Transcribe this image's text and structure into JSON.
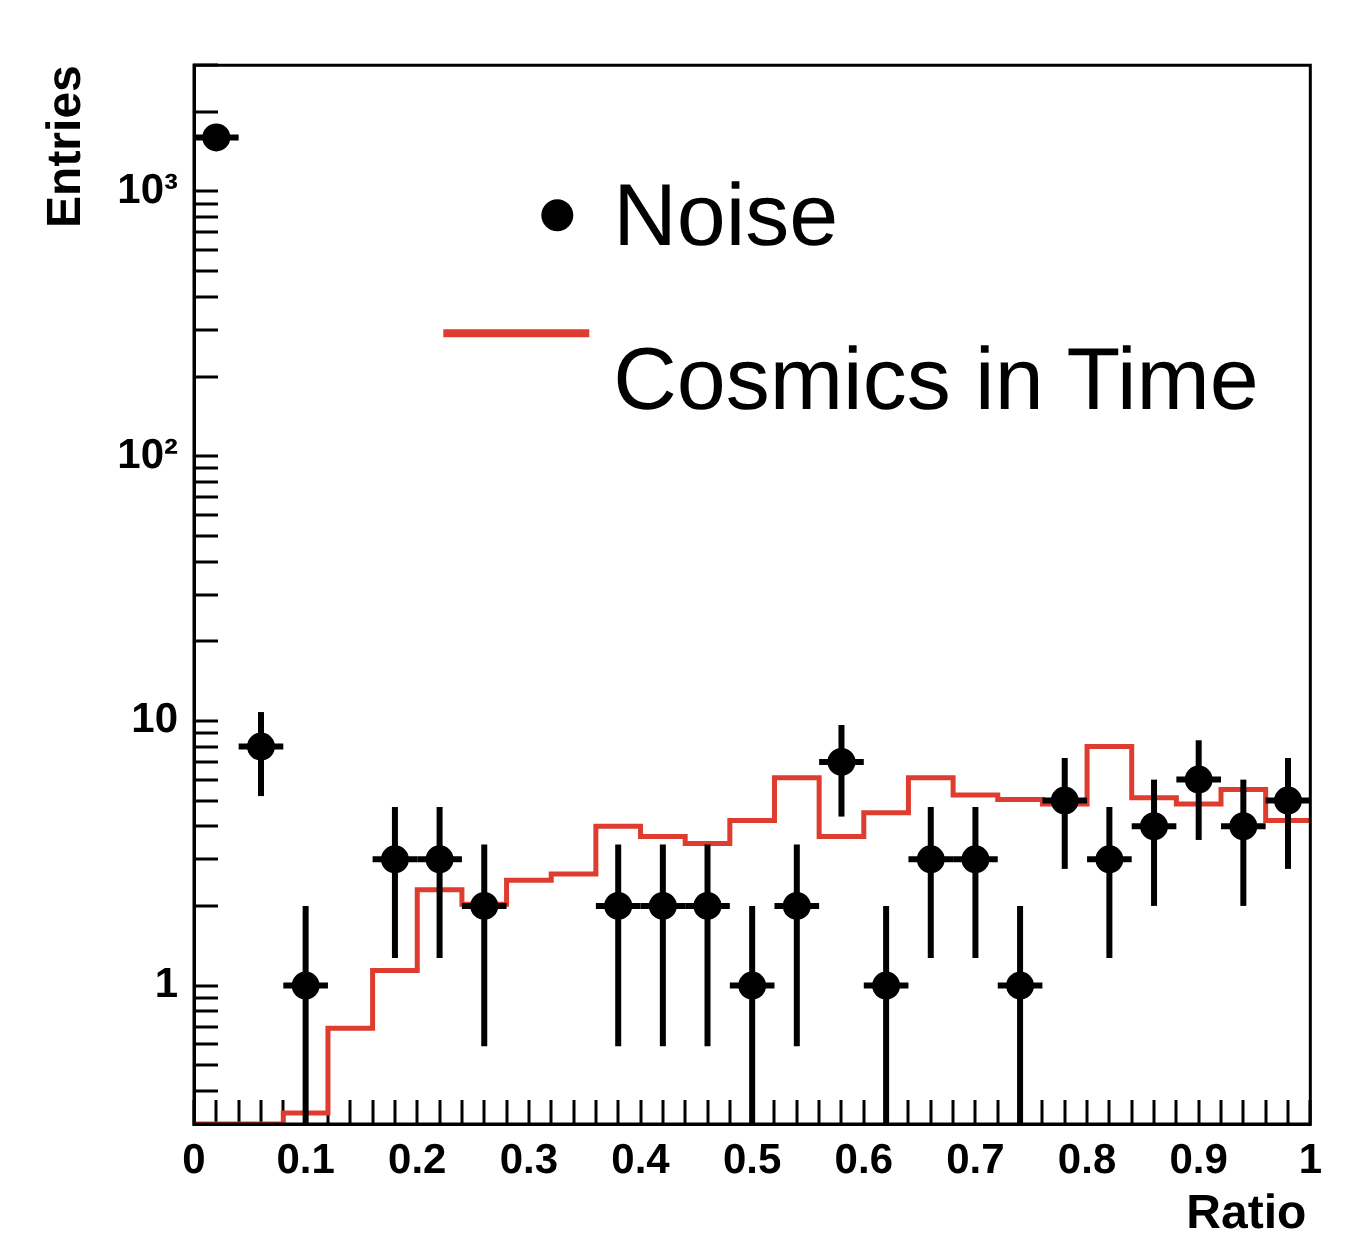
{
  "chart_data": {
    "type": "scatter",
    "xlabel": "Ratio",
    "ylabel": "Entries",
    "log": "y",
    "legend": "top right",
    "grid": false,
    "xlim": [
      0,
      1
    ],
    "xticks": [
      0,
      {
        "value": 0.02,
        "label": null
      },
      {
        "value": 0.04,
        "label": null
      },
      {
        "value": 0.06,
        "label": null
      },
      {
        "value": 0.08,
        "label": null
      },
      0.1,
      {
        "value": 0.12,
        "label": null
      },
      {
        "value": 0.14,
        "label": null
      },
      {
        "value": 0.16,
        "label": null
      },
      {
        "value": 0.18,
        "label": null
      },
      0.2,
      {
        "value": 0.22,
        "label": null
      },
      {
        "value": 0.24,
        "label": null
      },
      {
        "value": 0.26,
        "label": null
      },
      {
        "value": 0.28,
        "label": null
      },
      0.3,
      {
        "value": 0.32,
        "label": null
      },
      {
        "value": 0.34,
        "label": null
      },
      {
        "value": 0.36,
        "label": null
      },
      {
        "value": 0.38,
        "label": null
      },
      0.4,
      {
        "value": 0.42,
        "label": null
      },
      {
        "value": 0.44,
        "label": null
      },
      {
        "value": 0.46,
        "label": null
      },
      {
        "value": 0.48,
        "label": null
      },
      0.5,
      {
        "value": 0.52,
        "label": null
      },
      {
        "value": 0.54,
        "label": null
      },
      {
        "value": 0.56,
        "label": null
      },
      {
        "value": 0.58,
        "label": null
      },
      0.6,
      {
        "value": 0.62,
        "label": null
      },
      {
        "value": 0.64,
        "label": null
      },
      {
        "value": 0.66,
        "label": null
      },
      {
        "value": 0.68,
        "label": null
      },
      0.7,
      {
        "value": 0.72,
        "label": null
      },
      {
        "value": 0.74,
        "label": null
      },
      {
        "value": 0.76,
        "label": null
      },
      {
        "value": 0.78,
        "label": null
      },
      0.8,
      {
        "value": 0.82,
        "label": null
      },
      {
        "value": 0.84,
        "label": null
      },
      {
        "value": 0.86,
        "label": null
      },
      {
        "value": 0.88,
        "label": null
      },
      0.9,
      {
        "value": 0.92,
        "label": null
      },
      {
        "value": 0.94,
        "label": null
      },
      {
        "value": 0.96,
        "label": null
      },
      {
        "value": 0.98,
        "label": null
      },
      1
    ],
    "ylim": [
      0.3,
      3000
    ],
    "yticks": [
      {
        "value": 0.3,
        "label": null
      },
      {
        "value": 0.4,
        "label": null
      },
      {
        "value": 0.5,
        "label": null
      },
      {
        "value": 0.6,
        "label": null
      },
      {
        "value": 0.7,
        "label": null
      },
      {
        "value": 0.8,
        "label": null
      },
      {
        "value": 0.9,
        "label": null
      },
      1,
      {
        "value": 2,
        "label": null
      },
      {
        "value": 3,
        "label": null
      },
      {
        "value": 4,
        "label": null
      },
      {
        "value": 5,
        "label": null
      },
      {
        "value": 6,
        "label": null
      },
      {
        "value": 7,
        "label": null
      },
      {
        "value": 8,
        "label": null
      },
      {
        "value": 9,
        "label": null
      },
      10,
      {
        "value": 20,
        "label": null
      },
      {
        "value": 30,
        "label": null
      },
      {
        "value": 40,
        "label": null
      },
      {
        "value": 50,
        "label": null
      },
      {
        "value": 60,
        "label": null
      },
      {
        "value": 70,
        "label": null
      },
      {
        "value": 80,
        "label": null
      },
      {
        "value": 90,
        "label": null
      },
      {
        "value": 100,
        "label": "10²"
      },
      {
        "value": 200,
        "label": null
      },
      {
        "value": 300,
        "label": null
      },
      {
        "value": 400,
        "label": null
      },
      {
        "value": 500,
        "label": null
      },
      {
        "value": 600,
        "label": null
      },
      {
        "value": 700,
        "label": null
      },
      {
        "value": 800,
        "label": null
      },
      {
        "value": 900,
        "label": null
      },
      {
        "value": 1000,
        "label": "10³"
      },
      {
        "value": 2000,
        "label": null
      },
      {
        "value": 3000,
        "label": null
      }
    ],
    "series": [
      {
        "name": "Noise",
        "marker": "circle",
        "color": "#000000",
        "x": [
          0.02,
          0.06,
          0.1,
          0.14,
          0.18,
          0.22,
          0.26,
          0.3,
          0.34,
          0.38,
          0.42,
          0.46,
          0.5,
          0.54,
          0.58,
          0.62,
          0.66,
          0.7,
          0.74,
          0.78,
          0.82,
          0.86,
          0.9,
          0.94,
          0.98
        ],
        "values": [
          1600,
          8,
          1,
          null,
          3,
          3,
          2,
          null,
          null,
          2,
          2,
          2,
          1,
          2,
          7,
          1,
          3,
          3,
          1,
          5,
          3,
          4,
          6,
          4,
          5
        ],
        "errors": [
          [
            1560,
            1640
          ],
          [
            5.2,
            10.8
          ],
          [
            0.3,
            2
          ],
          null,
          [
            1.27,
            4.73
          ],
          [
            1.27,
            4.73
          ],
          [
            0.59,
            3.41
          ],
          null,
          null,
          [
            0.59,
            3.41
          ],
          [
            0.59,
            3.41
          ],
          [
            0.59,
            3.41
          ],
          [
            0.3,
            2
          ],
          [
            0.59,
            3.41
          ],
          [
            4.35,
            9.65
          ],
          [
            0.3,
            2
          ],
          [
            1.27,
            4.73
          ],
          [
            1.27,
            4.73
          ],
          [
            0.3,
            2
          ],
          [
            2.76,
            7.24
          ],
          [
            1.27,
            4.73
          ],
          [
            2,
            6
          ],
          [
            3.55,
            8.45
          ],
          [
            2,
            6
          ],
          [
            2.76,
            7.24
          ]
        ],
        "xerrors": [
          0.02,
          0.02,
          0.02,
          null,
          0.02,
          0.02,
          0.02,
          null,
          null,
          0.02,
          0.02,
          0.02,
          0.02,
          0.02,
          0.02,
          0.02,
          0.02,
          0.02,
          0.02,
          0.02,
          0.02,
          0.02,
          0.02,
          0.02,
          0.02
        ]
      },
      {
        "name": "Cosmics in Time",
        "type": "step",
        "color": "#dd3c2e",
        "marker": "none",
        "x": [
          0,
          0.04,
          0.08,
          0.12,
          0.16,
          0.2,
          0.24,
          0.28,
          0.32,
          0.36,
          0.4,
          0.44,
          0.48,
          0.52,
          0.56,
          0.6,
          0.64,
          0.68,
          0.72,
          0.76,
          0.8,
          0.84,
          0.88,
          0.92,
          0.96,
          1
        ],
        "values": [
          0.3,
          0.3,
          0.33,
          0.69,
          1.14,
          2.3,
          2.03,
          2.5,
          2.64,
          4.0,
          3.66,
          3.44,
          4.2,
          6.1,
          3.66,
          4.5,
          6.1,
          5.25,
          5.05,
          4.85,
          8.0,
          5.13,
          4.85,
          5.5,
          4.2,
          4.2
        ]
      }
    ]
  }
}
